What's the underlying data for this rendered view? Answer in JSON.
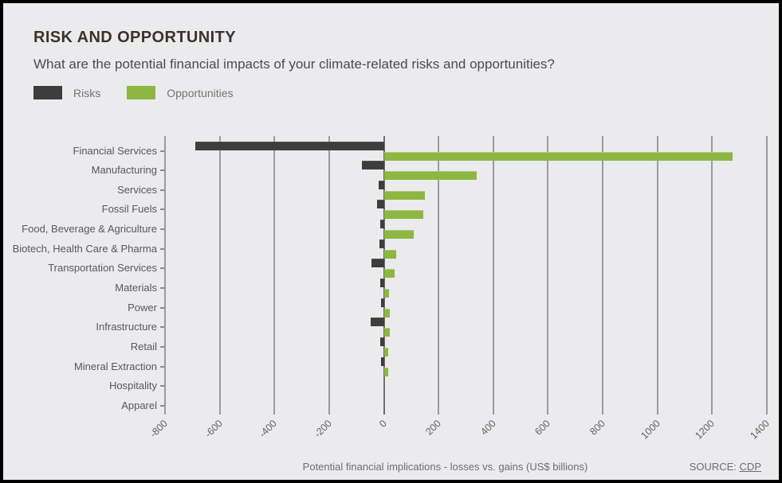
{
  "page": {
    "title": "RISK AND OPPORTUNITY",
    "subtitle": "What are the potential financial impacts of your climate-related risks and opportunities?",
    "footer_caption": "Potential financial implications - losses vs. gains (US$ billions)",
    "source_label": "SOURCE:",
    "source_link": "CDP"
  },
  "legend": [
    {
      "label": "Risks",
      "color": "#3d3d3d"
    },
    {
      "label": "Opportunities",
      "color": "#8cb741"
    }
  ],
  "colors": {
    "background": "#ebebed",
    "risk_bar": "#3d3d3d",
    "opportunity_bar": "#8cb741",
    "gridline": "#9b9b9b",
    "zero_line": "#6f6f6f"
  },
  "chart_data": {
    "type": "bar",
    "orientation": "horizontal-diverging",
    "title": "RISK AND OPPORTUNITY",
    "subtitle": "What are the potential financial impacts of your climate-related risks and opportunities?",
    "xlabel": "Potential financial implications - losses vs. gains (US$ billions)",
    "ylabel": "",
    "xlim": [
      -800,
      1400
    ],
    "x_ticks": [
      -800,
      -600,
      -400,
      -200,
      0,
      200,
      400,
      600,
      800,
      1000,
      1200,
      1400
    ],
    "grid": true,
    "legend_position": "top-left",
    "categories": [
      "Financial Services",
      "Manufacturing",
      "Services",
      "Fossil Fuels",
      "Food, Beverage & Agriculture",
      "Biotech, Health Care & Pharma",
      "Transportation Services",
      "Materials",
      "Power",
      "Infrastructure",
      "Retail",
      "Mineral Extraction",
      "Hospitality",
      "Apparel"
    ],
    "series": [
      {
        "name": "Risks",
        "color": "#3d3d3d",
        "values": [
          -690,
          -80,
          -20,
          -25,
          -12,
          -15,
          -45,
          -12,
          -10,
          -48,
          -12,
          -10,
          0,
          0
        ]
      },
      {
        "name": "Opportunities",
        "color": "#8cb741",
        "values": [
          1275,
          340,
          150,
          145,
          110,
          45,
          40,
          20,
          22,
          22,
          17,
          15,
          0,
          0
        ]
      }
    ],
    "source": "CDP"
  }
}
